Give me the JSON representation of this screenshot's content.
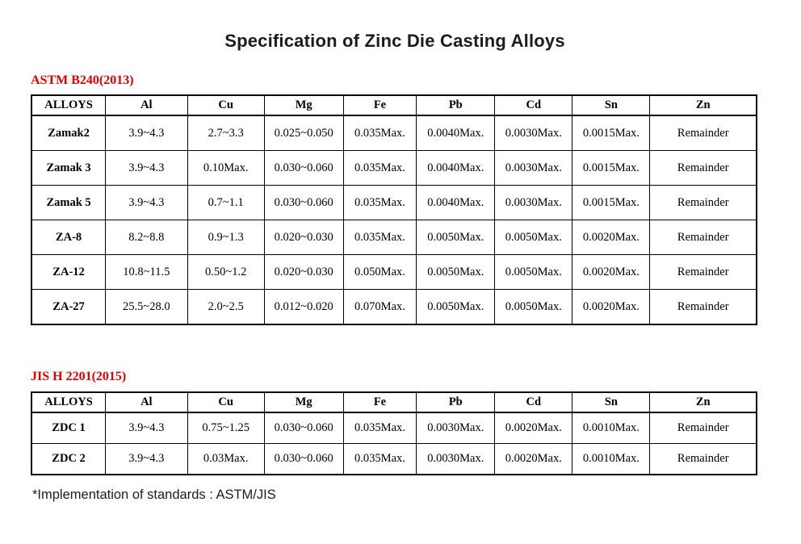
{
  "title": "Specification of Zinc Die Casting Alloys",
  "sections": [
    {
      "heading": "ASTM B240(2013)",
      "columns": [
        "ALLOYS",
        "Al",
        "Cu",
        "Mg",
        "Fe",
        "Pb",
        "Cd",
        "Sn",
        "Zn"
      ],
      "rows": [
        {
          "alloy": "Zamak2",
          "values": [
            "3.9~4.3",
            "2.7~3.3",
            "0.025~0.050",
            "0.035Max.",
            "0.0040Max.",
            "0.0030Max.",
            "0.0015Max.",
            "Remainder"
          ]
        },
        {
          "alloy": "Zamak 3",
          "values": [
            "3.9~4.3",
            "0.10Max.",
            "0.030~0.060",
            "0.035Max.",
            "0.0040Max.",
            "0.0030Max.",
            "0.0015Max.",
            "Remainder"
          ]
        },
        {
          "alloy": "Zamak 5",
          "values": [
            "3.9~4.3",
            "0.7~1.1",
            "0.030~0.060",
            "0.035Max.",
            "0.0040Max.",
            "0.0030Max.",
            "0.0015Max.",
            "Remainder"
          ]
        },
        {
          "alloy": "ZA-8",
          "values": [
            "8.2~8.8",
            "0.9~1.3",
            "0.020~0.030",
            "0.035Max.",
            "0.0050Max.",
            "0.0050Max.",
            "0.0020Max.",
            "Remainder"
          ]
        },
        {
          "alloy": "ZA-12",
          "values": [
            "10.8~11.5",
            "0.50~1.2",
            "0.020~0.030",
            "0.050Max.",
            "0.0050Max.",
            "0.0050Max.",
            "0.0020Max.",
            "Remainder"
          ]
        },
        {
          "alloy": "ZA-27",
          "values": [
            "25.5~28.0",
            "2.0~2.5",
            "0.012~0.020",
            "0.070Max.",
            "0.0050Max.",
            "0.0050Max.",
            "0.0020Max.",
            "Remainder"
          ]
        }
      ]
    },
    {
      "heading": "JIS H 2201(2015)",
      "columns": [
        "ALLOYS",
        "Al",
        "Cu",
        "Mg",
        "Fe",
        "Pb",
        "Cd",
        "Sn",
        "Zn"
      ],
      "rows": [
        {
          "alloy": "ZDC 1",
          "values": [
            "3.9~4.3",
            "0.75~1.25",
            "0.030~0.060",
            "0.035Max.",
            "0.0030Max.",
            "0.0020Max.",
            "0.0010Max.",
            "Remainder"
          ]
        },
        {
          "alloy": "ZDC 2",
          "values": [
            "3.9~4.3",
            "0.03Max.",
            "0.030~0.060",
            "0.035Max.",
            "0.0030Max.",
            "0.0020Max.",
            "0.0010Max.",
            "Remainder"
          ]
        }
      ]
    }
  ],
  "footnote": "*Implementation of standards : ASTM/JIS",
  "colors": {
    "heading_red": "#e00000",
    "text": "#000000",
    "border": "#000000",
    "background": "#ffffff"
  }
}
